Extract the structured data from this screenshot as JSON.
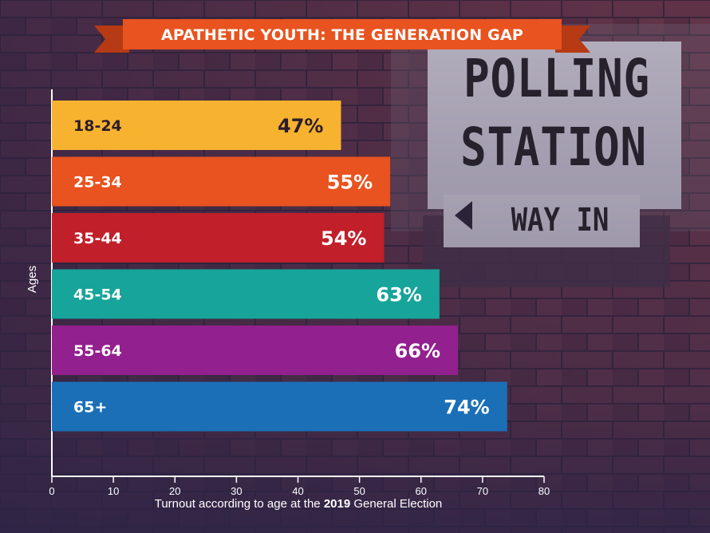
{
  "title": "APATHETIC YOUTH: THE GENERATION GAP",
  "sign": {
    "line1": "POLLING",
    "line2": "STATION",
    "line3": "WAY IN"
  },
  "colors": {
    "ribbon": "#e8531f",
    "axis": "#ffffff"
  },
  "chart_data": {
    "type": "bar",
    "orientation": "horizontal",
    "categories": [
      "18-24",
      "25-34",
      "35-44",
      "45-54",
      "55-64",
      "65+"
    ],
    "values": [
      47,
      55,
      54,
      63,
      66,
      74
    ],
    "value_labels": [
      "47%",
      "55%",
      "54%",
      "63%",
      "66%",
      "74%"
    ],
    "bar_colors": [
      "#f7b22f",
      "#e8531f",
      "#c11f2a",
      "#17a49a",
      "#93208f",
      "#1b6fb7"
    ],
    "category_text_colors": [
      "#2b1c2c",
      "#ffffff",
      "#ffffff",
      "#ffffff",
      "#ffffff",
      "#ffffff"
    ],
    "value_text_colors": [
      "#2b1c2c",
      "#ffffff",
      "#ffffff",
      "#ffffff",
      "#ffffff",
      "#ffffff"
    ],
    "xlim": [
      0,
      80
    ],
    "xticks": [
      0,
      10,
      20,
      30,
      40,
      50,
      60,
      70,
      80
    ],
    "ylabel": "Ages",
    "xlabel_pre": "Turnout according to age at the ",
    "xlabel_bold": "2019",
    "xlabel_post": " General Election",
    "grid": false,
    "legend": "none"
  }
}
